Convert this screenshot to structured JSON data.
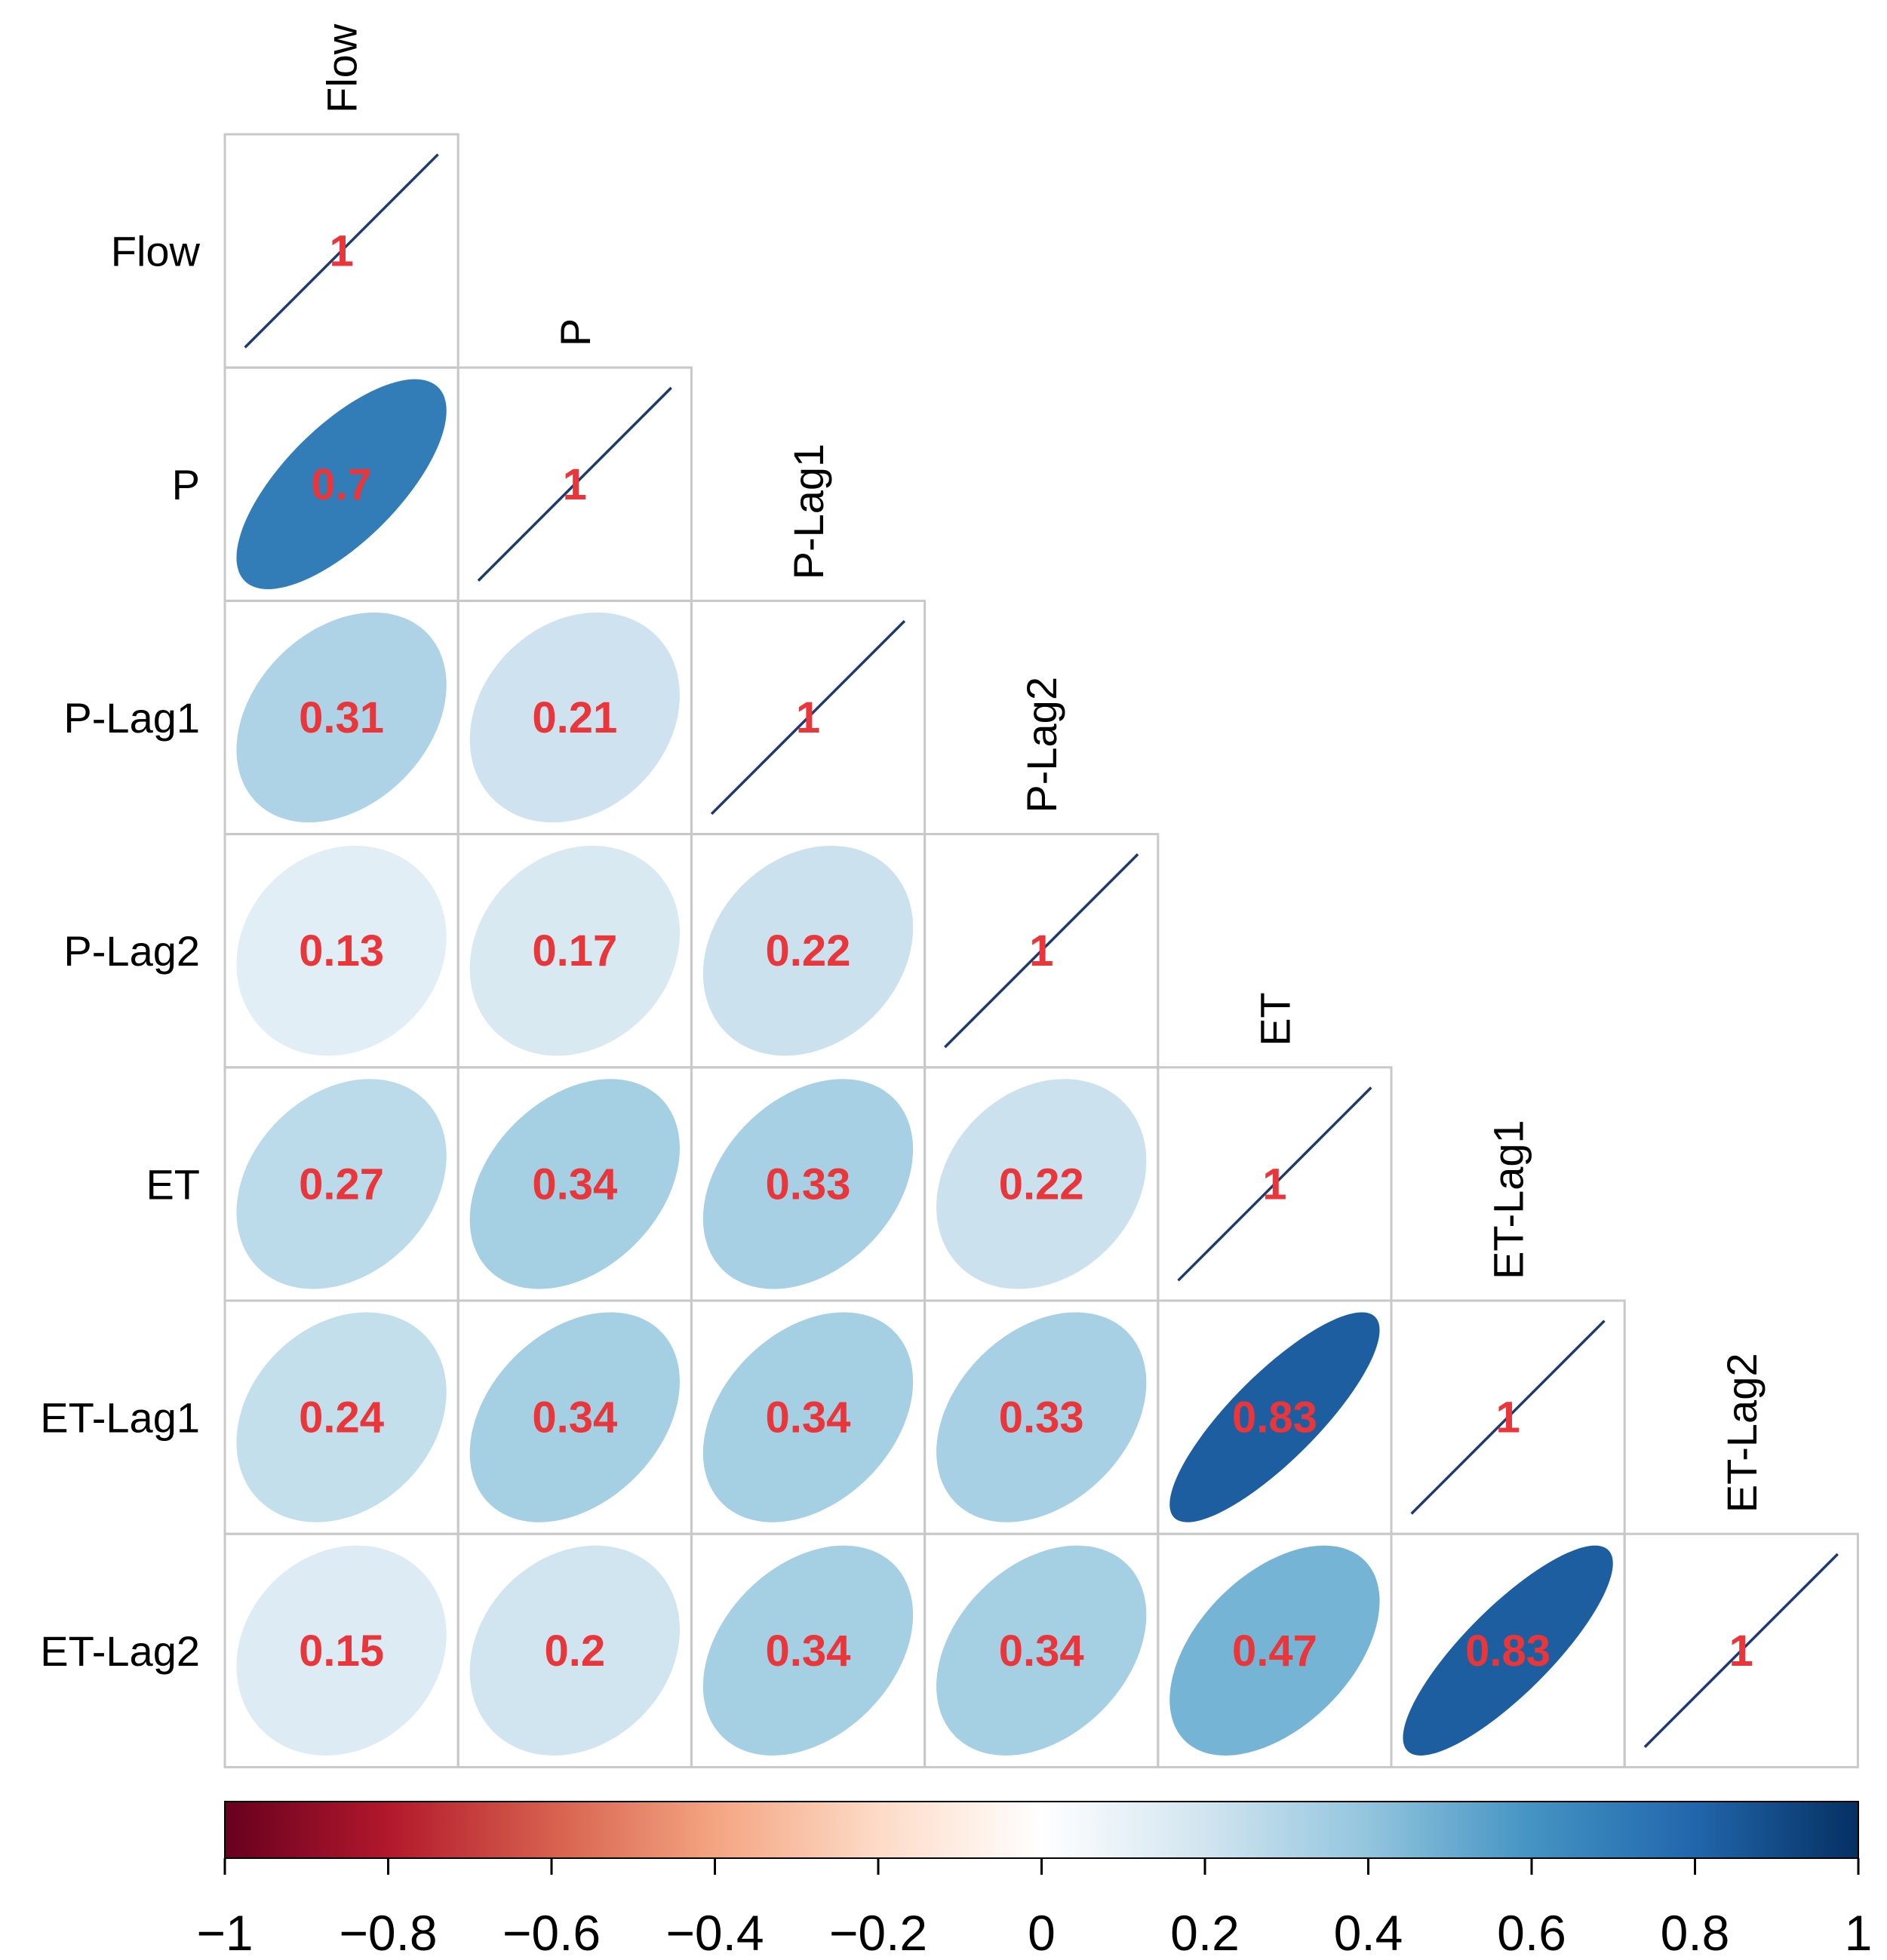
{
  "chart_data": {
    "type": "heatmap",
    "subtype": "correlation-ellipse-lower-triangle",
    "variables": [
      "Flow",
      "P",
      "P-Lag1",
      "P-Lag2",
      "ET",
      "ET-Lag1",
      "ET-Lag2"
    ],
    "matrix": [
      [
        1,
        null,
        null,
        null,
        null,
        null,
        null
      ],
      [
        0.7,
        1,
        null,
        null,
        null,
        null,
        null
      ],
      [
        0.31,
        0.21,
        1,
        null,
        null,
        null,
        null
      ],
      [
        0.13,
        0.17,
        0.22,
        1,
        null,
        null,
        null
      ],
      [
        0.27,
        0.34,
        0.33,
        0.22,
        1,
        null,
        null
      ],
      [
        0.24,
        0.34,
        0.34,
        0.33,
        0.83,
        1,
        null
      ],
      [
        0.15,
        0.2,
        0.34,
        0.34,
        0.47,
        0.83,
        1
      ]
    ],
    "value_labels": [
      [
        "1"
      ],
      [
        "0.7",
        "1"
      ],
      [
        "0.31",
        "0.21",
        "1"
      ],
      [
        "0.13",
        "0.17",
        "0.22",
        "1"
      ],
      [
        "0.27",
        "0.34",
        "0.33",
        "0.22",
        "1"
      ],
      [
        "0.24",
        "0.34",
        "0.34",
        "0.33",
        "0.83",
        "1"
      ],
      [
        "0.15",
        "0.2",
        "0.34",
        "0.34",
        "0.47",
        "0.83",
        "1"
      ]
    ],
    "colorbar": {
      "range": [
        -1,
        1
      ],
      "ticks": [
        -1,
        -0.8,
        -0.6,
        -0.4,
        -0.2,
        0,
        0.2,
        0.4,
        0.6,
        0.8,
        1
      ],
      "tick_labels": [
        "−1",
        "−0.8",
        "−0.6",
        "−0.4",
        "−0.2",
        "0",
        "0.2",
        "0.4",
        "0.6",
        "0.8",
        "1"
      ],
      "placement": "bottom",
      "colors": [
        "#67001f",
        "#b2182b",
        "#d6604d",
        "#f4a582",
        "#fddbc7",
        "#ffffff",
        "#d1e5f0",
        "#92c5de",
        "#4393c3",
        "#2166ac",
        "#053061"
      ]
    },
    "label_color": "#e8363b",
    "diagonal_line_color": "#1f3a6e",
    "grid_color": "#c8c8c8"
  }
}
